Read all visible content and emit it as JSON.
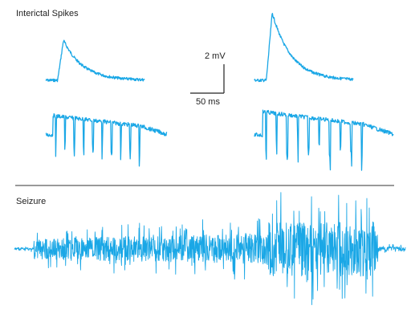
{
  "labels": {
    "interictal_title": "Interictal Spikes",
    "seizure_title": "Seizure",
    "scale_voltage": "2 mV",
    "scale_time": "50 ms"
  },
  "colors": {
    "trace": "#1aa7e6",
    "text": "#222222",
    "divider": "#333333"
  },
  "chart_data": {
    "type": "line",
    "title": "",
    "panels": [
      {
        "section": "Interictal Spikes",
        "name": "",
        "shape": "spike",
        "amplitude_mV": 2.1,
        "duration_ms": 100
      },
      {
        "section": "Interictal Spikes",
        "name": "",
        "shape": "spike",
        "amplitude_mV": 3.0,
        "duration_ms": 110
      },
      {
        "section": "Interictal Spikes",
        "name": "",
        "shape": "burst",
        "amplitude_mV": 3.0,
        "duration_ms": 140
      },
      {
        "section": "Interictal Spikes",
        "name": "",
        "shape": "burst",
        "amplitude_mV": 3.2,
        "duration_ms": 170
      },
      {
        "section": "Seizure",
        "name": "",
        "shape": "seizure",
        "amplitude_mV": 6.0,
        "duration_ms": 470
      }
    ],
    "scale_bar": {
      "voltage_mV": 2,
      "time_ms": 50
    },
    "grid": false,
    "legend": "none"
  }
}
